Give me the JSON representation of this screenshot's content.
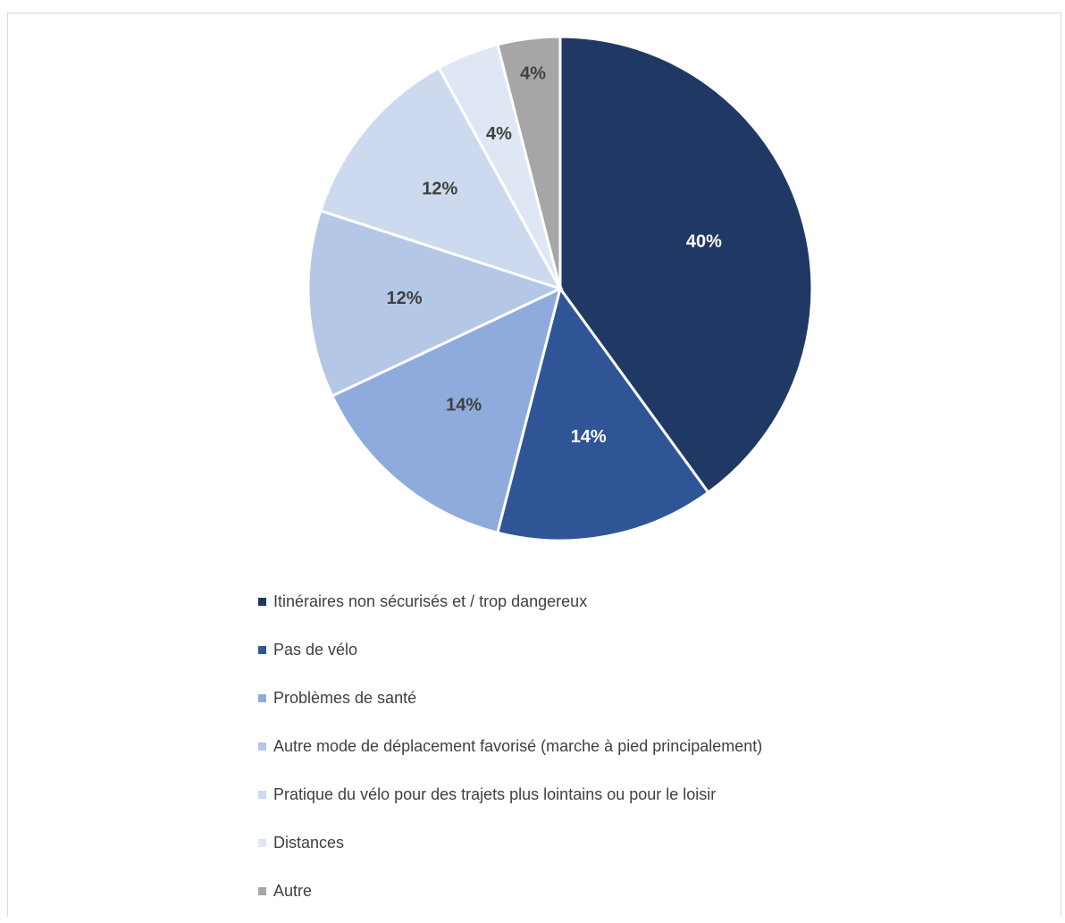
{
  "chart_data": {
    "type": "pie",
    "slices": [
      {
        "label": "Itinéraires non sécurisés et / trop dangereux",
        "value": 40,
        "display": "40%",
        "color": "#203864",
        "label_color": "#ffffff"
      },
      {
        "label": "Pas de vélo",
        "value": 14,
        "display": "14%",
        "color": "#2F5597",
        "label_color": "#ffffff"
      },
      {
        "label": "Problèmes de santé",
        "value": 14,
        "display": "14%",
        "color": "#8FAADC",
        "label_color": "#404040"
      },
      {
        "label": "Autre mode de déplacement favorisé (marche à pied principalement)",
        "value": 12,
        "display": "12%",
        "color": "#B4C7E7",
        "label_color": "#404040"
      },
      {
        "label": "Pratique du vélo pour des trajets plus lointains ou pour le loisir",
        "value": 12,
        "display": "12%",
        "color": "#CDD9EE",
        "label_color": "#404040"
      },
      {
        "label": "Distances",
        "value": 4,
        "display": "4%",
        "color": "#DFE7F5",
        "label_color": "#404040"
      },
      {
        "label": "Autre",
        "value": 4,
        "display": "4%",
        "color": "#A6A6A6",
        "label_color": "#404040"
      }
    ],
    "legend_position": "bottom"
  }
}
